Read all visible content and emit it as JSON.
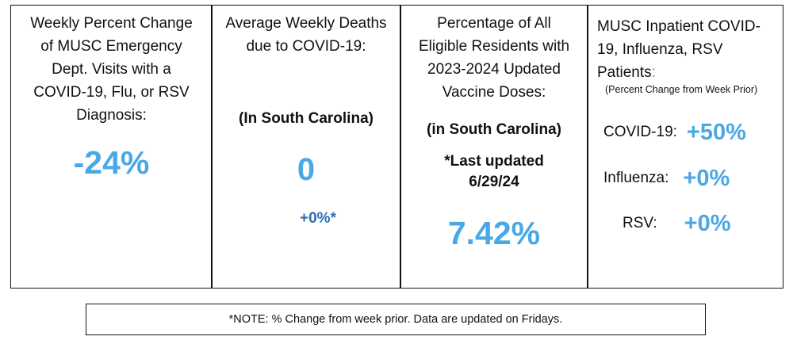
{
  "colors": {
    "value_light_blue": "#4aa8e6",
    "value_dark_blue": "#2f6db5",
    "border": "#111111",
    "text": "#111111"
  },
  "panels": [
    {
      "title_lines": [
        "Weekly Percent Change",
        "of MUSC Emergency",
        "Dept. Visits with a",
        "COVID-19, Flu, or RSV",
        "Diagnosis:"
      ],
      "value": "-24%"
    },
    {
      "title_lines": [
        "Average Weekly Deaths",
        "due to COVID-19:"
      ],
      "location": "(In South Carolina)",
      "value": "0",
      "change": "+0%*"
    },
    {
      "title_lines": [
        "Percentage of All",
        "Eligible Residents with",
        "2023-2024 Updated",
        "Vaccine Doses:"
      ],
      "location": "(in South Carolina)",
      "updated_lines": [
        "*Last updated",
        "6/29/24"
      ],
      "value": "7.42%"
    },
    {
      "title_lines": [
        "MUSC Inpatient COVID-",
        "19, Influenza, RSV",
        "Patients"
      ],
      "title_colon": ":",
      "subtitle": "(Percent Change from Week Prior)",
      "rows": [
        {
          "label": "COVID-19:",
          "value": "+50%"
        },
        {
          "label": "Influenza:",
          "value": "+0%"
        },
        {
          "label": "RSV:",
          "value": "+0%"
        }
      ]
    }
  ],
  "note": "*NOTE: % Change from week prior. Data are updated on Fridays."
}
